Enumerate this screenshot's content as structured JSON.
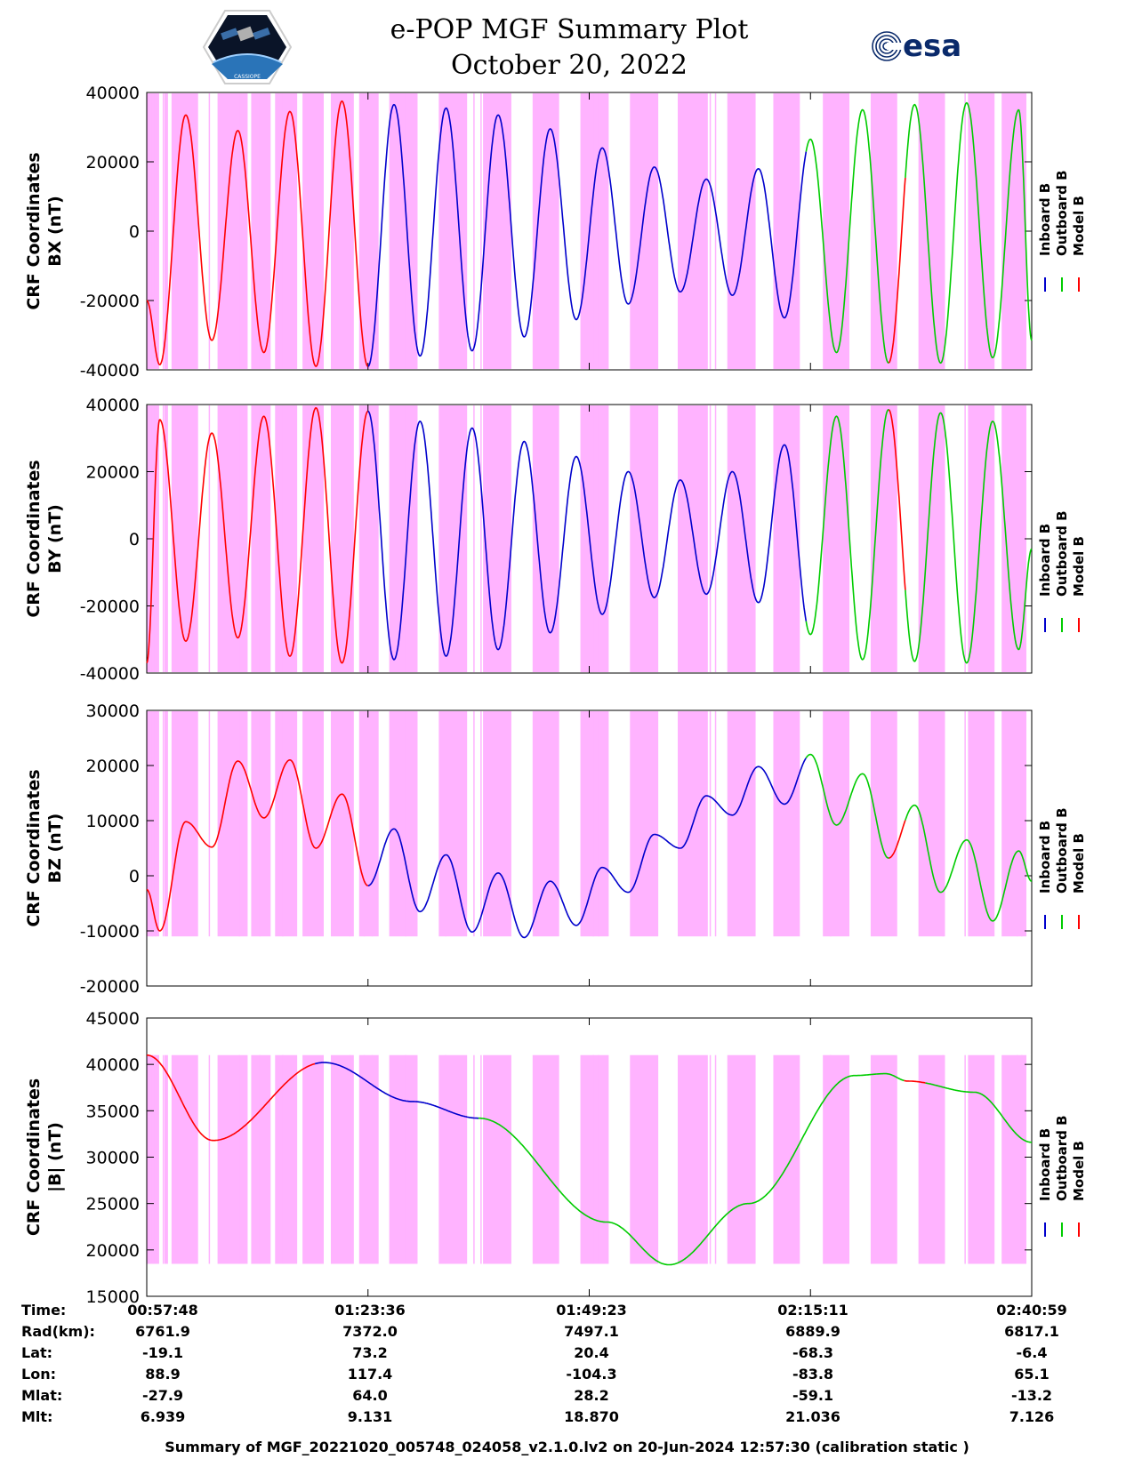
{
  "title": {
    "line1": "e-POP MGF Summary Plot",
    "line2": "October 20, 2022"
  },
  "logos": {
    "left_icon": "satellite-mission-patch-icon",
    "left_text": "CASSIOPE",
    "right_text": "esa",
    "right_icon": "esa-logo-icon"
  },
  "colors": {
    "inboard": "#0000cc",
    "outboard": "#00cc00",
    "model": "#ff0000",
    "shade": "#ffb3ff"
  },
  "chart_data": [
    {
      "type": "line",
      "ylabel_line1": "CRF Coordinates",
      "ylabel_line2": "BX (nT)",
      "ylim": [
        -40000,
        40000
      ],
      "yticks": [
        40000,
        20000,
        0,
        -20000,
        -40000
      ],
      "legend": [
        "Inboard B",
        "Outboard B",
        "Model B"
      ],
      "shape": {
        "type": "osc",
        "peaks": [
          -38500,
          33500,
          -31500,
          29000,
          -35000,
          34500,
          -39000,
          37500,
          -39000,
          36500,
          -36000,
          35500,
          -34500,
          33500,
          -30500,
          29500,
          -25500,
          24000,
          -21000,
          18500,
          -17500,
          15000,
          -18500,
          18000,
          -25000,
          26500,
          -35000,
          35000,
          -38000,
          36500,
          -38000,
          37000,
          -36500,
          35000
        ],
        "start": -20000,
        "end": -31500
      }
    },
    {
      "type": "line",
      "ylabel_line1": "CRF Coordinates",
      "ylabel_line2": "BY (nT)",
      "ylim": [
        -40000,
        40000
      ],
      "yticks": [
        40000,
        20000,
        0,
        -20000,
        -40000
      ],
      "legend": [
        "Inboard B",
        "Outboard B",
        "Model B"
      ],
      "shape": {
        "type": "osc",
        "peaks": [
          35500,
          -30500,
          31500,
          -29500,
          36500,
          -35000,
          39000,
          -37000,
          38000,
          -36000,
          35000,
          -35000,
          33000,
          -33000,
          29000,
          -28000,
          24500,
          -22500,
          20000,
          -17500,
          17500,
          -16500,
          20000,
          -19000,
          28000,
          -28500,
          36500,
          -36000,
          38500,
          -36500,
          37500,
          -37000,
          35000,
          -33000
        ],
        "start": -37000,
        "end": -3000
      }
    },
    {
      "type": "line",
      "ylabel_line1": "CRF Coordinates",
      "ylabel_line2": "BZ (nT)",
      "ylim": [
        -20000,
        30000
      ],
      "yticks": [
        30000,
        20000,
        10000,
        0,
        -10000,
        -20000
      ],
      "legend": [
        "Inboard B",
        "Outboard B",
        "Model B"
      ],
      "shape": {
        "type": "osc",
        "peaks": [
          -10000,
          9800,
          5200,
          20800,
          10500,
          21000,
          5000,
          14800,
          -1800,
          8500,
          -6500,
          3800,
          -10200,
          500,
          -11200,
          -1000,
          -9000,
          1500,
          -3000,
          7500,
          5000,
          14500,
          11000,
          19800,
          13000,
          22000,
          9200,
          18500,
          3200,
          12800,
          -3000,
          6500,
          -8200,
          4500
        ],
        "start": -2500,
        "end": -1000
      }
    },
    {
      "type": "line",
      "ylabel_line1": "CRF Coordinates",
      "ylabel_line2": "|B| (nT)",
      "ylim": [
        15000,
        45000
      ],
      "yticks": [
        45000,
        40000,
        35000,
        30000,
        25000,
        20000,
        15000
      ],
      "legend": [
        "Inboard B",
        "Outboard B",
        "Model B"
      ],
      "shape": {
        "type": "btotal"
      }
    }
  ],
  "time_axis": {
    "labels": {
      "row_time": "Time:",
      "row_rad": "Rad(km):",
      "row_lat": "Lat:",
      "row_lon": "Lon:",
      "row_mlat": "Mlat:",
      "row_mlt": "Mlt:"
    },
    "columns": [
      {
        "time": "00:57:48",
        "rad": "6761.9",
        "lat": "-19.1",
        "lon": "88.9",
        "mlat": "-27.9",
        "mlt": "6.939"
      },
      {
        "time": "01:23:36",
        "rad": "7372.0",
        "lat": "73.2",
        "lon": "117.4",
        "mlat": "64.0",
        "mlt": "9.131"
      },
      {
        "time": "01:49:23",
        "rad": "7497.1",
        "lat": "20.4",
        "lon": "-104.3",
        "mlat": "28.2",
        "mlt": "18.870"
      },
      {
        "time": "02:15:11",
        "rad": "6889.9",
        "lat": "-68.3",
        "lon": "-83.8",
        "mlat": "-59.1",
        "mlt": "21.036"
      },
      {
        "time": "02:40:59",
        "rad": "6817.1",
        "lat": "-6.4",
        "lon": "65.1",
        "mlat": "-13.2",
        "mlt": "7.126"
      }
    ]
  },
  "footer": "Summary of MGF_20221020_005748_024058_v2.1.0.lv2 on 20-Jun-2024 12:57:30 (calibration static )"
}
